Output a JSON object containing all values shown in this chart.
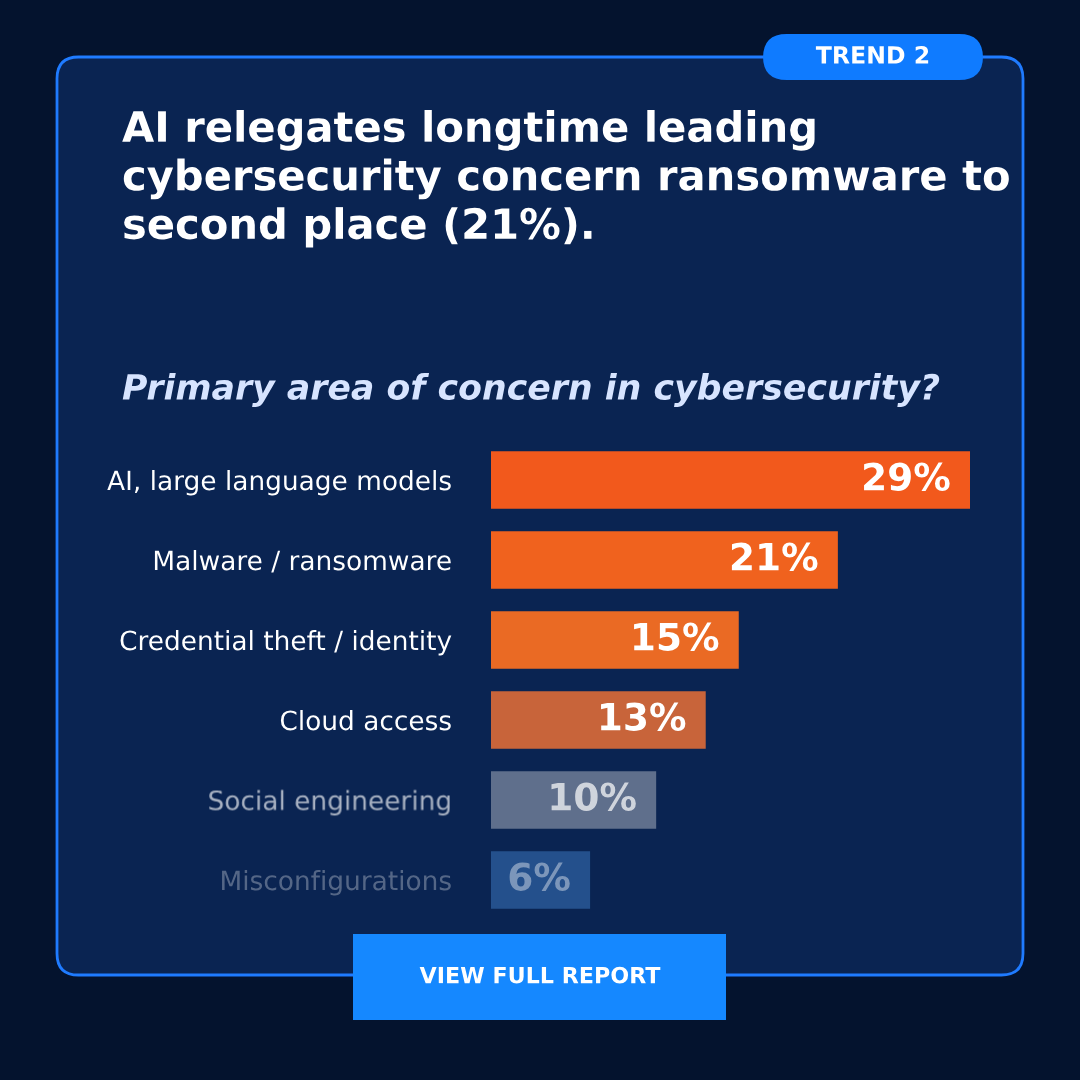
{
  "chart_data": {
    "type": "bar",
    "orientation": "horizontal",
    "data_labels": true,
    "title": "AI relegates longtime leading cybersecurity concern ransomware to second place (21%).",
    "subtitle": "Primary area of concern in cybersecurity?",
    "categories": [
      "AI, large language models",
      "Malware / ransomware",
      "Credential theft / identity",
      "Cloud access",
      "Social engineering",
      "Misconfigurations"
    ],
    "values": [
      29,
      21,
      15,
      13,
      10,
      6
    ],
    "value_labels": [
      "29%",
      "21%",
      "15%",
      "13%",
      "10%",
      "6%"
    ],
    "colors": [
      "#f2591c",
      "#f0621e",
      "#ea6a24",
      "#c8643a",
      "#5f6f8c",
      "#24508c"
    ],
    "annotations": [
      "TREND 2",
      "VIEW FULL REPORT"
    ]
  }
}
